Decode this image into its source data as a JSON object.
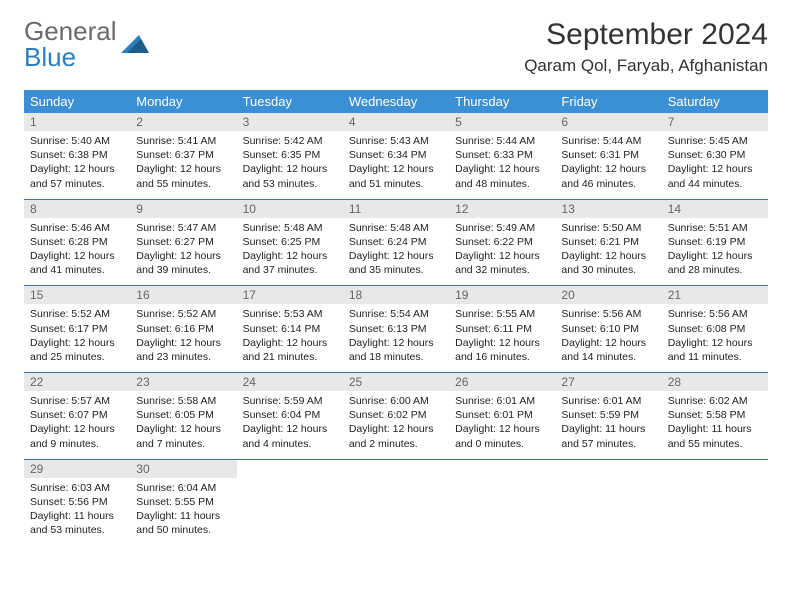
{
  "brand": {
    "part1": "General",
    "part2": "Blue"
  },
  "title": "September 2024",
  "location": "Qaram Qol, Faryab, Afghanistan",
  "colors": {
    "header_bg": "#3b8fd4",
    "row_border": "#3b78a8",
    "daynum_bg": "#e8e8e8",
    "brand_gray": "#6b6b6b",
    "brand_blue": "#2a7fbf"
  },
  "weekdays": [
    "Sunday",
    "Monday",
    "Tuesday",
    "Wednesday",
    "Thursday",
    "Friday",
    "Saturday"
  ],
  "days": [
    {
      "n": "1",
      "sr": "5:40 AM",
      "ss": "6:38 PM",
      "dl": "12 hours and 57 minutes."
    },
    {
      "n": "2",
      "sr": "5:41 AM",
      "ss": "6:37 PM",
      "dl": "12 hours and 55 minutes."
    },
    {
      "n": "3",
      "sr": "5:42 AM",
      "ss": "6:35 PM",
      "dl": "12 hours and 53 minutes."
    },
    {
      "n": "4",
      "sr": "5:43 AM",
      "ss": "6:34 PM",
      "dl": "12 hours and 51 minutes."
    },
    {
      "n": "5",
      "sr": "5:44 AM",
      "ss": "6:33 PM",
      "dl": "12 hours and 48 minutes."
    },
    {
      "n": "6",
      "sr": "5:44 AM",
      "ss": "6:31 PM",
      "dl": "12 hours and 46 minutes."
    },
    {
      "n": "7",
      "sr": "5:45 AM",
      "ss": "6:30 PM",
      "dl": "12 hours and 44 minutes."
    },
    {
      "n": "8",
      "sr": "5:46 AM",
      "ss": "6:28 PM",
      "dl": "12 hours and 41 minutes."
    },
    {
      "n": "9",
      "sr": "5:47 AM",
      "ss": "6:27 PM",
      "dl": "12 hours and 39 minutes."
    },
    {
      "n": "10",
      "sr": "5:48 AM",
      "ss": "6:25 PM",
      "dl": "12 hours and 37 minutes."
    },
    {
      "n": "11",
      "sr": "5:48 AM",
      "ss": "6:24 PM",
      "dl": "12 hours and 35 minutes."
    },
    {
      "n": "12",
      "sr": "5:49 AM",
      "ss": "6:22 PM",
      "dl": "12 hours and 32 minutes."
    },
    {
      "n": "13",
      "sr": "5:50 AM",
      "ss": "6:21 PM",
      "dl": "12 hours and 30 minutes."
    },
    {
      "n": "14",
      "sr": "5:51 AM",
      "ss": "6:19 PM",
      "dl": "12 hours and 28 minutes."
    },
    {
      "n": "15",
      "sr": "5:52 AM",
      "ss": "6:17 PM",
      "dl": "12 hours and 25 minutes."
    },
    {
      "n": "16",
      "sr": "5:52 AM",
      "ss": "6:16 PM",
      "dl": "12 hours and 23 minutes."
    },
    {
      "n": "17",
      "sr": "5:53 AM",
      "ss": "6:14 PM",
      "dl": "12 hours and 21 minutes."
    },
    {
      "n": "18",
      "sr": "5:54 AM",
      "ss": "6:13 PM",
      "dl": "12 hours and 18 minutes."
    },
    {
      "n": "19",
      "sr": "5:55 AM",
      "ss": "6:11 PM",
      "dl": "12 hours and 16 minutes."
    },
    {
      "n": "20",
      "sr": "5:56 AM",
      "ss": "6:10 PM",
      "dl": "12 hours and 14 minutes."
    },
    {
      "n": "21",
      "sr": "5:56 AM",
      "ss": "6:08 PM",
      "dl": "12 hours and 11 minutes."
    },
    {
      "n": "22",
      "sr": "5:57 AM",
      "ss": "6:07 PM",
      "dl": "12 hours and 9 minutes."
    },
    {
      "n": "23",
      "sr": "5:58 AM",
      "ss": "6:05 PM",
      "dl": "12 hours and 7 minutes."
    },
    {
      "n": "24",
      "sr": "5:59 AM",
      "ss": "6:04 PM",
      "dl": "12 hours and 4 minutes."
    },
    {
      "n": "25",
      "sr": "6:00 AM",
      "ss": "6:02 PM",
      "dl": "12 hours and 2 minutes."
    },
    {
      "n": "26",
      "sr": "6:01 AM",
      "ss": "6:01 PM",
      "dl": "12 hours and 0 minutes."
    },
    {
      "n": "27",
      "sr": "6:01 AM",
      "ss": "5:59 PM",
      "dl": "11 hours and 57 minutes."
    },
    {
      "n": "28",
      "sr": "6:02 AM",
      "ss": "5:58 PM",
      "dl": "11 hours and 55 minutes."
    },
    {
      "n": "29",
      "sr": "6:03 AM",
      "ss": "5:56 PM",
      "dl": "11 hours and 53 minutes."
    },
    {
      "n": "30",
      "sr": "6:04 AM",
      "ss": "5:55 PM",
      "dl": "11 hours and 50 minutes."
    }
  ],
  "labels": {
    "sunrise": "Sunrise:",
    "sunset": "Sunset:",
    "daylight": "Daylight:"
  },
  "layout": {
    "cols": 7,
    "rows": 5,
    "trailing_empty": 5
  }
}
